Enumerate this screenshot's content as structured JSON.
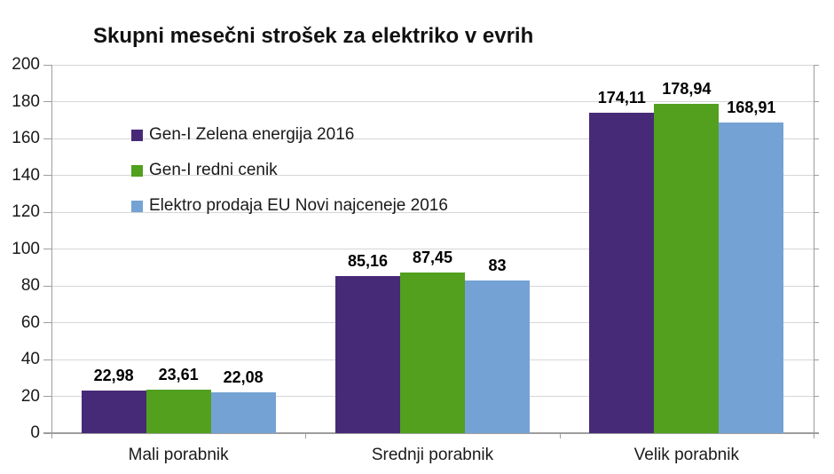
{
  "chart_data": {
    "type": "bar",
    "title": "Skupni mesečni strošek za elektriko v evrih",
    "xlabel": "",
    "ylabel": "",
    "ylim": [
      0,
      200
    ],
    "yticks": [
      0,
      20,
      40,
      60,
      80,
      100,
      120,
      140,
      160,
      180,
      200
    ],
    "grid": true,
    "legend_position": "inside-top-left",
    "categories": [
      "Mali porabnik",
      "Srednji porabnik",
      "Velik porabnik"
    ],
    "series": [
      {
        "name": "Gen-I Zelena energija 2016",
        "color": "#472a77",
        "values": [
          22.98,
          85.16,
          174.11
        ],
        "labels": [
          "22,98",
          "85,16",
          "174,11"
        ]
      },
      {
        "name": "Gen-I redni cenik",
        "color": "#52a01e",
        "values": [
          23.61,
          87.45,
          178.94
        ],
        "labels": [
          "23,61",
          "87,45",
          "178,94"
        ]
      },
      {
        "name": "Elektro prodaja EU Novi najceneje 2016",
        "color": "#74a2d4",
        "values": [
          22.08,
          83,
          168.91
        ],
        "labels": [
          "22,08",
          "83",
          "168,91"
        ]
      }
    ],
    "colors": {
      "grid": "#d6d6d6",
      "axis": "#9e9e9e",
      "tick_text": "#1a1a1a",
      "value_label": "#000000",
      "background": "#ffffff"
    }
  }
}
